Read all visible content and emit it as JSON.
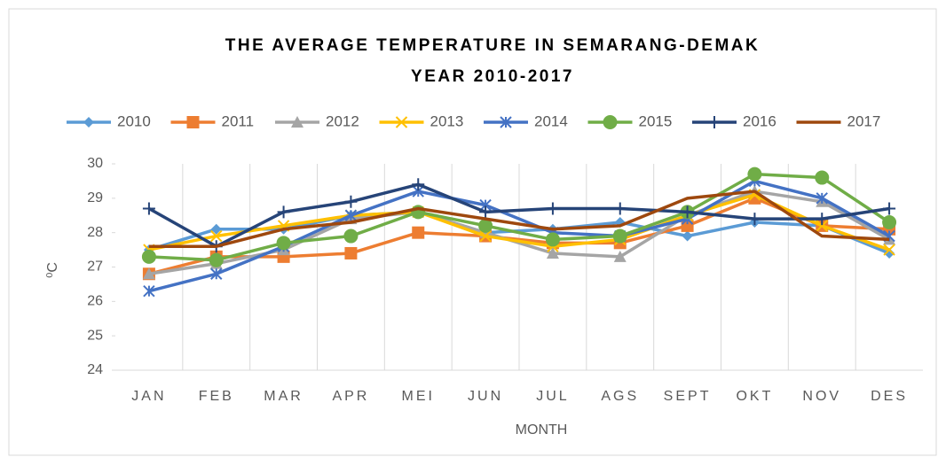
{
  "chart_data": {
    "type": "line",
    "title": [
      "THE AVERAGE TEMPERATURE IN SEMARANG-DEMAK",
      "YEAR 2010-2017"
    ],
    "xlabel": "MONTH",
    "ylabel": "⁰C",
    "categories": [
      "JAN",
      "FEB",
      "MAR",
      "APR",
      "MEI",
      "JUN",
      "JUL",
      "AGS",
      "SEPT",
      "OKT",
      "NOV",
      "DES"
    ],
    "ylim": [
      24,
      30
    ],
    "yticks": [
      24,
      25,
      26,
      27,
      28,
      29,
      30
    ],
    "legend": "top",
    "series": [
      {
        "name": "2010",
        "color": "#5b9bd5",
        "marker": "diamond",
        "values": [
          27.5,
          28.1,
          28.1,
          28.5,
          28.6,
          28.0,
          28.1,
          28.3,
          27.9,
          28.3,
          28.2,
          27.4
        ]
      },
      {
        "name": "2011",
        "color": "#ed7d31",
        "marker": "square",
        "values": [
          26.8,
          27.3,
          27.3,
          27.4,
          28.0,
          27.9,
          27.7,
          27.7,
          28.2,
          29.0,
          28.2,
          28.1
        ]
      },
      {
        "name": "2012",
        "color": "#a5a5a5",
        "marker": "triangle",
        "values": [
          26.8,
          27.1,
          27.5,
          28.4,
          28.6,
          28.0,
          27.4,
          27.3,
          28.5,
          29.2,
          28.9,
          27.8
        ]
      },
      {
        "name": "2013",
        "color": "#ffc000",
        "marker": "x",
        "values": [
          27.5,
          27.9,
          28.2,
          28.5,
          28.6,
          27.9,
          27.6,
          27.8,
          28.5,
          29.1,
          28.2,
          27.5
        ]
      },
      {
        "name": "2014",
        "color": "#4472c4",
        "marker": "star",
        "values": [
          26.3,
          26.8,
          27.6,
          28.5,
          29.2,
          28.8,
          28.0,
          27.9,
          28.4,
          29.5,
          29.0,
          27.9
        ]
      },
      {
        "name": "2015",
        "color": "#70ad47",
        "marker": "circle",
        "values": [
          27.3,
          27.2,
          27.7,
          27.9,
          28.6,
          28.2,
          27.8,
          27.9,
          28.6,
          29.7,
          29.6,
          28.3
        ]
      },
      {
        "name": "2016",
        "color": "#264478",
        "marker": "plus",
        "values": [
          28.7,
          27.6,
          28.6,
          28.9,
          29.4,
          28.6,
          28.7,
          28.7,
          28.6,
          28.4,
          28.4,
          28.7
        ]
      },
      {
        "name": "2017",
        "color": "#9e480e",
        "marker": "none",
        "values": [
          27.6,
          27.6,
          28.1,
          28.3,
          28.7,
          28.4,
          28.1,
          28.2,
          29.0,
          29.2,
          27.9,
          27.8
        ]
      }
    ]
  }
}
